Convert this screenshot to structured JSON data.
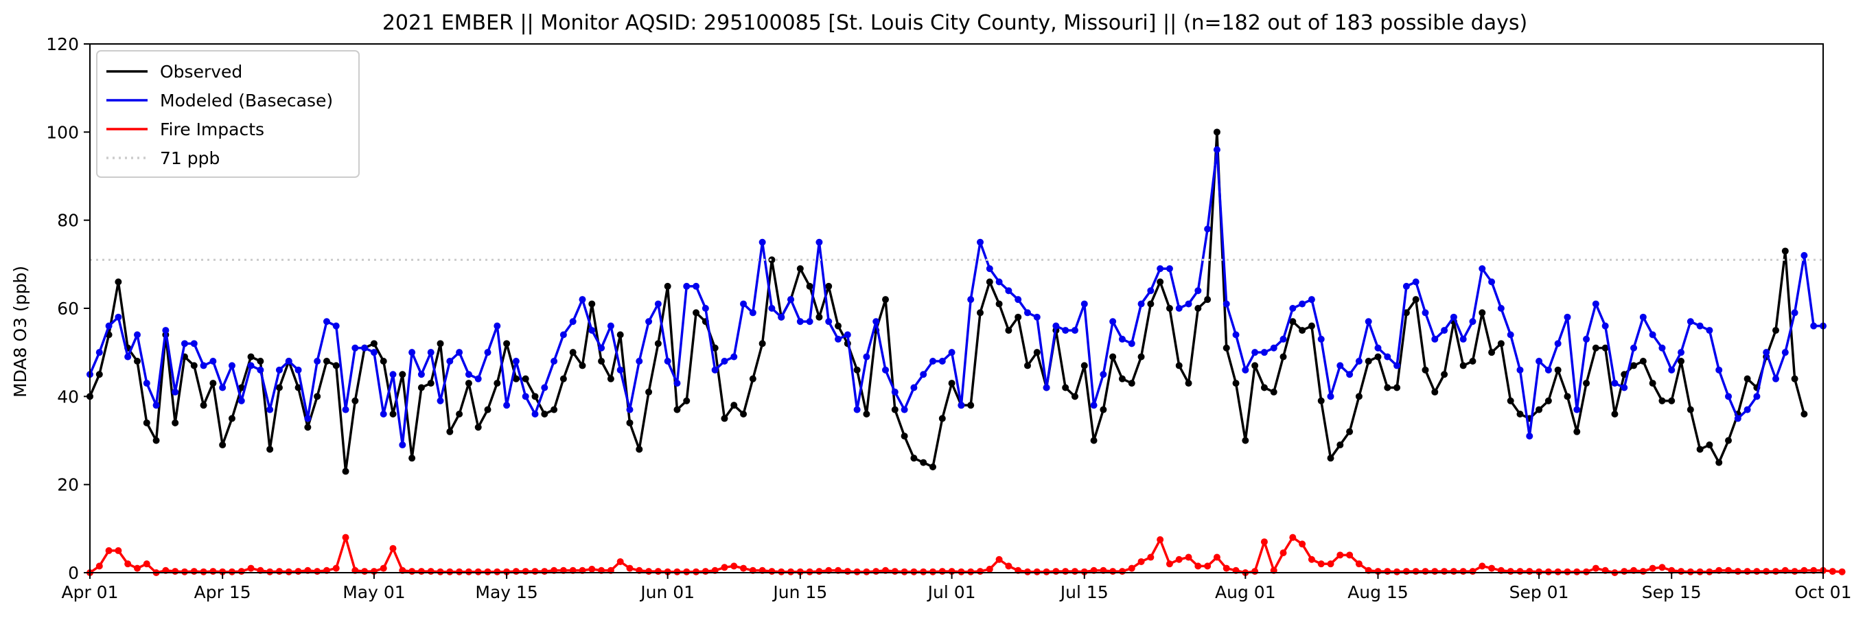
{
  "chart_data": {
    "type": "line",
    "title": "2021 EMBER || Monitor AQSID: 295100085 [St. Louis City County, Missouri] || (n=182 out of 183 possible days)",
    "xlabel": "",
    "ylabel": "MDA8 O3 (ppb)",
    "xlim": [
      "2021-04-01",
      "2021-10-01"
    ],
    "ylim": [
      0,
      120
    ],
    "yticks": [
      0,
      20,
      40,
      60,
      80,
      100,
      120
    ],
    "xticks": [
      {
        "date": "2021-04-01",
        "label": "Apr 01"
      },
      {
        "date": "2021-04-15",
        "label": "Apr 15"
      },
      {
        "date": "2021-05-01",
        "label": "May 01"
      },
      {
        "date": "2021-05-15",
        "label": "May 15"
      },
      {
        "date": "2021-06-01",
        "label": "Jun 01"
      },
      {
        "date": "2021-06-15",
        "label": "Jun 15"
      },
      {
        "date": "2021-07-01",
        "label": "Jul 01"
      },
      {
        "date": "2021-07-15",
        "label": "Jul 15"
      },
      {
        "date": "2021-08-01",
        "label": "Aug 01"
      },
      {
        "date": "2021-08-15",
        "label": "Aug 15"
      },
      {
        "date": "2021-09-01",
        "label": "Sep 01"
      },
      {
        "date": "2021-09-15",
        "label": "Sep 15"
      },
      {
        "date": "2021-10-01",
        "label": "Oct 01"
      }
    ],
    "grid": false,
    "legend_position": "top-left",
    "start_date": "2021-04-01",
    "series": [
      {
        "name": "Observed",
        "color": "#000000",
        "values": [
          40,
          45,
          54,
          66,
          51,
          48,
          34,
          30,
          54,
          34,
          49,
          47,
          38,
          43,
          29,
          35,
          42,
          49,
          48,
          28,
          42,
          48,
          42,
          33,
          40,
          48,
          47,
          23,
          39,
          51,
          52,
          48,
          36,
          45,
          26,
          42,
          43,
          52,
          32,
          36,
          43,
          33,
          37,
          43,
          52,
          44,
          44,
          40,
          36,
          37,
          44,
          50,
          47,
          61,
          48,
          44,
          54,
          34,
          28,
          41,
          52,
          65,
          37,
          39,
          59,
          57,
          51,
          35,
          38,
          36,
          44,
          52,
          71,
          58,
          62,
          69,
          65,
          58,
          65,
          56,
          52,
          46,
          36,
          55,
          62,
          37,
          31,
          26,
          25,
          24,
          35,
          43,
          38,
          38,
          59,
          66,
          61,
          55,
          58,
          47,
          50,
          42,
          55,
          42,
          40,
          47,
          30,
          37,
          49,
          44,
          43,
          49,
          61,
          66,
          60,
          47,
          43,
          60,
          62,
          100,
          51,
          43,
          30,
          47,
          42,
          41,
          49,
          57,
          55,
          56,
          39,
          26,
          29,
          32,
          40,
          48,
          49,
          42,
          42,
          59,
          62,
          46,
          41,
          45,
          57,
          47,
          48,
          59,
          50,
          52,
          39,
          36,
          35,
          37,
          39,
          46,
          40,
          32,
          43,
          51,
          51,
          36,
          45,
          47,
          48,
          43,
          39,
          39,
          48,
          37,
          28,
          29,
          25,
          30,
          36,
          44,
          42,
          49,
          55,
          73,
          44,
          36
        ]
      },
      {
        "name": "Modeled (Basecase)",
        "color": "#0000ee",
        "values": [
          45,
          50,
          56,
          58,
          49,
          54,
          43,
          38,
          55,
          41,
          52,
          52,
          47,
          48,
          42,
          47,
          39,
          47,
          46,
          37,
          46,
          48,
          46,
          35,
          48,
          57,
          56,
          37,
          51,
          51,
          50,
          36,
          45,
          29,
          50,
          45,
          50,
          39,
          48,
          50,
          45,
          44,
          50,
          56,
          38,
          48,
          40,
          36,
          42,
          48,
          54,
          57,
          62,
          55,
          51,
          56,
          46,
          37,
          48,
          57,
          61,
          48,
          43,
          65,
          65,
          60,
          46,
          48,
          49,
          61,
          59,
          75,
          60,
          58,
          62,
          57,
          57,
          75,
          57,
          53,
          54,
          37,
          49,
          57,
          46,
          41,
          37,
          42,
          45,
          48,
          48,
          50,
          38,
          62,
          75,
          69,
          66,
          64,
          62,
          59,
          58,
          42,
          56,
          55,
          55,
          61,
          38,
          45,
          57,
          53,
          52,
          61,
          64,
          69,
          69,
          60,
          61,
          64,
          78,
          96,
          61,
          54,
          46,
          50,
          50,
          51,
          53,
          60,
          61,
          62,
          53,
          40,
          47,
          45,
          48,
          57,
          51,
          49,
          47,
          65,
          66,
          59,
          53,
          55,
          58,
          53,
          57,
          69,
          66,
          60,
          54,
          46,
          31,
          48,
          46,
          52,
          58,
          37,
          53,
          61,
          56,
          43,
          42,
          51,
          58,
          54,
          51,
          46,
          50,
          57,
          56,
          55,
          46,
          40,
          35,
          37,
          40,
          50,
          44,
          50,
          59,
          72,
          56,
          56
        ]
      },
      {
        "name": "Fire Impacts",
        "color": "#ff0000",
        "values": [
          0,
          1.5,
          5,
          5,
          2,
          1,
          2,
          0,
          0.5,
          0.3,
          0.2,
          0.3,
          0.2,
          0.3,
          0.2,
          0.2,
          0.3,
          1,
          0.5,
          0.2,
          0.3,
          0.2,
          0.3,
          0.5,
          0.3,
          0.5,
          1,
          8,
          0.5,
          0.3,
          0.3,
          1,
          5.5,
          0.5,
          0.3,
          0.3,
          0.3,
          0.2,
          0.2,
          0.2,
          0.2,
          0.2,
          0.2,
          0.2,
          0.2,
          0.3,
          0.3,
          0.3,
          0.3,
          0.5,
          0.5,
          0.5,
          0.5,
          0.8,
          0.5,
          0.5,
          2.5,
          1,
          0.5,
          0.3,
          0.3,
          0.2,
          0.2,
          0.2,
          0.2,
          0.3,
          0.5,
          1.2,
          1.5,
          1,
          0.5,
          0.5,
          0.3,
          0.2,
          0.2,
          0.2,
          0.2,
          0.3,
          0.5,
          0.5,
          0.3,
          0.2,
          0.2,
          0.3,
          0.5,
          0.3,
          0.2,
          0.2,
          0.2,
          0.2,
          0.3,
          0.3,
          0.2,
          0.2,
          0.3,
          0.8,
          3,
          1.5,
          0.5,
          0.2,
          0.2,
          0.2,
          0.3,
          0.3,
          0.3,
          0.2,
          0.5,
          0.5,
          0.3,
          0.3,
          1,
          2.5,
          3.5,
          7.5,
          2,
          3,
          3.5,
          1.5,
          1.5,
          3.5,
          1,
          0.5,
          0,
          0.3,
          7,
          0.5,
          4.5,
          8,
          6.5,
          3,
          2,
          2,
          4,
          4,
          2,
          0.5,
          0.3,
          0.3,
          0.2,
          0.3,
          0.3,
          0.3,
          0.3,
          0.3,
          0.3,
          0.3,
          0.3,
          1.5,
          1,
          0.5,
          0.3,
          0.3,
          0.3,
          0.2,
          0.2,
          0.2,
          0.2,
          0.2,
          0.2,
          1,
          0.5,
          0,
          0.3,
          0.5,
          0.3,
          1,
          1.2,
          0.5,
          0.3,
          0.2,
          0.2,
          0.2,
          0.5,
          0.5,
          0.3,
          0.3,
          0.3,
          0.3,
          0.3,
          0.5,
          0.3,
          0.5,
          0.5,
          0.5,
          0.3,
          0.2
        ]
      },
      {
        "name": "71 ppb",
        "color": "#cccccc",
        "constant": 71
      }
    ]
  }
}
